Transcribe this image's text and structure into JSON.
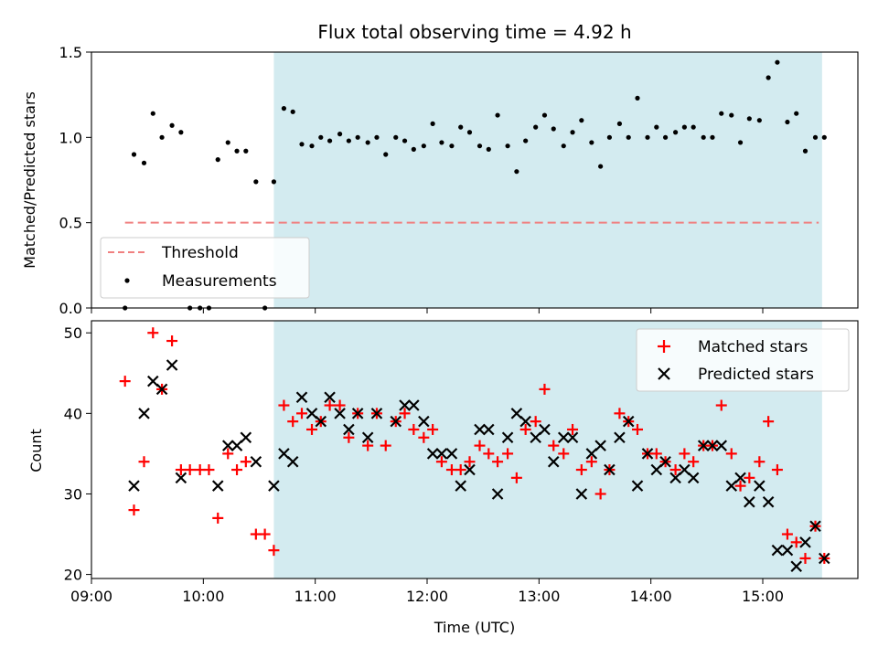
{
  "chart_data": [
    {
      "type": "scatter",
      "title": "Flux total observing time = 4.92 h",
      "xlabel": "",
      "ylabel": "Matched/Predicted stars",
      "xlim": [
        9.0,
        15.85
      ],
      "ylim": [
        0.0,
        1.5
      ],
      "yticks": [
        0.0,
        0.5,
        1.0,
        1.5
      ],
      "ytick_labels": [
        "0.0",
        "0.5",
        "1.0",
        "1.5"
      ],
      "shaded_span": [
        10.63,
        15.53
      ],
      "shade_color": "#d3ebf0",
      "threshold": {
        "name": "Threshold",
        "value": 0.5,
        "x_range": [
          9.3,
          15.5
        ],
        "color": "#f08080"
      },
      "measurements": {
        "name": "Measurements",
        "color": "#000000",
        "points": [
          [
            9.3,
            0.0
          ],
          [
            9.38,
            0.9
          ],
          [
            9.47,
            0.85
          ],
          [
            9.55,
            1.14
          ],
          [
            9.63,
            1.0
          ],
          [
            9.72,
            1.07
          ],
          [
            9.8,
            1.03
          ],
          [
            9.88,
            0.0
          ],
          [
            9.97,
            0.0
          ],
          [
            10.05,
            0.0
          ],
          [
            10.13,
            0.87
          ],
          [
            10.22,
            0.97
          ],
          [
            10.3,
            0.92
          ],
          [
            10.38,
            0.92
          ],
          [
            10.47,
            0.74
          ],
          [
            10.55,
            0.0
          ],
          [
            10.63,
            0.74
          ],
          [
            10.72,
            1.17
          ],
          [
            10.8,
            1.15
          ],
          [
            10.88,
            0.96
          ],
          [
            10.97,
            0.95
          ],
          [
            11.05,
            1.0
          ],
          [
            11.13,
            0.98
          ],
          [
            11.22,
            1.02
          ],
          [
            11.3,
            0.98
          ],
          [
            11.38,
            1.0
          ],
          [
            11.47,
            0.97
          ],
          [
            11.55,
            1.0
          ],
          [
            11.63,
            0.9
          ],
          [
            11.72,
            1.0
          ],
          [
            11.8,
            0.98
          ],
          [
            11.88,
            0.93
          ],
          [
            11.97,
            0.95
          ],
          [
            12.05,
            1.08
          ],
          [
            12.13,
            0.97
          ],
          [
            12.22,
            0.95
          ],
          [
            12.3,
            1.06
          ],
          [
            12.38,
            1.03
          ],
          [
            12.47,
            0.95
          ],
          [
            12.55,
            0.93
          ],
          [
            12.63,
            1.13
          ],
          [
            12.72,
            0.95
          ],
          [
            12.8,
            0.8
          ],
          [
            12.88,
            0.98
          ],
          [
            12.97,
            1.06
          ],
          [
            13.05,
            1.13
          ],
          [
            13.13,
            1.05
          ],
          [
            13.22,
            0.95
          ],
          [
            13.3,
            1.03
          ],
          [
            13.38,
            1.1
          ],
          [
            13.47,
            0.97
          ],
          [
            13.55,
            0.83
          ],
          [
            13.63,
            1.0
          ],
          [
            13.72,
            1.08
          ],
          [
            13.8,
            1.0
          ],
          [
            13.88,
            1.23
          ],
          [
            13.97,
            1.0
          ],
          [
            14.05,
            1.06
          ],
          [
            14.13,
            1.0
          ],
          [
            14.22,
            1.03
          ],
          [
            14.3,
            1.06
          ],
          [
            14.38,
            1.06
          ],
          [
            14.47,
            1.0
          ],
          [
            14.55,
            1.0
          ],
          [
            14.63,
            1.14
          ],
          [
            14.72,
            1.13
          ],
          [
            14.8,
            0.97
          ],
          [
            14.88,
            1.11
          ],
          [
            14.97,
            1.1
          ],
          [
            15.05,
            1.35
          ],
          [
            15.13,
            1.44
          ],
          [
            15.22,
            1.09
          ],
          [
            15.3,
            1.14
          ],
          [
            15.38,
            0.92
          ],
          [
            15.47,
            1.0
          ],
          [
            15.55,
            1.0
          ]
        ]
      },
      "legend": {
        "position": "lower-left",
        "entries": [
          "Threshold",
          "Measurements"
        ]
      }
    },
    {
      "type": "scatter",
      "title": "",
      "xlabel": "Time (UTC)",
      "ylabel": "Count",
      "xlim": [
        9.0,
        15.85
      ],
      "ylim": [
        19.5,
        51.5
      ],
      "yticks": [
        20,
        30,
        40,
        50
      ],
      "ytick_labels": [
        "20",
        "30",
        "40",
        "50"
      ],
      "xticks": [
        9,
        10,
        11,
        12,
        13,
        14,
        15
      ],
      "xtick_labels": [
        "09:00",
        "10:00",
        "11:00",
        "12:00",
        "13:00",
        "14:00",
        "15:00"
      ],
      "shaded_span": [
        10.63,
        15.53
      ],
      "series": [
        {
          "name": "Matched stars",
          "marker": "+",
          "color": "#ff0000",
          "points": [
            [
              9.3,
              44
            ],
            [
              9.38,
              28
            ],
            [
              9.47,
              34
            ],
            [
              9.55,
              50
            ],
            [
              9.63,
              43
            ],
            [
              9.72,
              49
            ],
            [
              9.8,
              33
            ],
            [
              9.88,
              33
            ],
            [
              9.97,
              33
            ],
            [
              10.05,
              33
            ],
            [
              10.13,
              27
            ],
            [
              10.22,
              35
            ],
            [
              10.3,
              33
            ],
            [
              10.38,
              34
            ],
            [
              10.47,
              25
            ],
            [
              10.55,
              25
            ],
            [
              10.63,
              23
            ],
            [
              10.72,
              41
            ],
            [
              10.8,
              39
            ],
            [
              10.88,
              40
            ],
            [
              10.97,
              38
            ],
            [
              11.05,
              39
            ],
            [
              11.13,
              41
            ],
            [
              11.22,
              41
            ],
            [
              11.3,
              37
            ],
            [
              11.38,
              40
            ],
            [
              11.47,
              36
            ],
            [
              11.55,
              40
            ],
            [
              11.63,
              36
            ],
            [
              11.72,
              39
            ],
            [
              11.8,
              40
            ],
            [
              11.88,
              38
            ],
            [
              11.97,
              37
            ],
            [
              12.05,
              38
            ],
            [
              12.13,
              34
            ],
            [
              12.22,
              33
            ],
            [
              12.3,
              33
            ],
            [
              12.38,
              34
            ],
            [
              12.47,
              36
            ],
            [
              12.55,
              35
            ],
            [
              12.63,
              34
            ],
            [
              12.72,
              35
            ],
            [
              12.8,
              32
            ],
            [
              12.88,
              38
            ],
            [
              12.97,
              39
            ],
            [
              13.05,
              43
            ],
            [
              13.13,
              36
            ],
            [
              13.22,
              35
            ],
            [
              13.3,
              38
            ],
            [
              13.38,
              33
            ],
            [
              13.47,
              34
            ],
            [
              13.55,
              30
            ],
            [
              13.63,
              33
            ],
            [
              13.72,
              40
            ],
            [
              13.8,
              39
            ],
            [
              13.88,
              38
            ],
            [
              13.97,
              35
            ],
            [
              14.05,
              35
            ],
            [
              14.13,
              34
            ],
            [
              14.22,
              33
            ],
            [
              14.3,
              35
            ],
            [
              14.38,
              34
            ],
            [
              14.47,
              36
            ],
            [
              14.55,
              36
            ],
            [
              14.63,
              41
            ],
            [
              14.72,
              35
            ],
            [
              14.8,
              31
            ],
            [
              14.88,
              32
            ],
            [
              14.97,
              34
            ],
            [
              15.05,
              39
            ],
            [
              15.13,
              33
            ],
            [
              15.22,
              25
            ],
            [
              15.3,
              24
            ],
            [
              15.38,
              22
            ],
            [
              15.47,
              26
            ],
            [
              15.55,
              22
            ]
          ]
        },
        {
          "name": "Predicted stars",
          "marker": "x",
          "color": "#000000",
          "points": [
            [
              9.38,
              31
            ],
            [
              9.47,
              40
            ],
            [
              9.55,
              44
            ],
            [
              9.63,
              43
            ],
            [
              9.72,
              46
            ],
            [
              9.8,
              32
            ],
            [
              10.13,
              31
            ],
            [
              10.22,
              36
            ],
            [
              10.3,
              36
            ],
            [
              10.38,
              37
            ],
            [
              10.47,
              34
            ],
            [
              10.63,
              31
            ],
            [
              10.72,
              35
            ],
            [
              10.8,
              34
            ],
            [
              10.88,
              42
            ],
            [
              10.97,
              40
            ],
            [
              11.05,
              39
            ],
            [
              11.13,
              42
            ],
            [
              11.22,
              40
            ],
            [
              11.3,
              38
            ],
            [
              11.38,
              40
            ],
            [
              11.47,
              37
            ],
            [
              11.55,
              40
            ],
            [
              11.72,
              39
            ],
            [
              11.8,
              41
            ],
            [
              11.88,
              41
            ],
            [
              11.97,
              39
            ],
            [
              12.05,
              35
            ],
            [
              12.13,
              35
            ],
            [
              12.22,
              35
            ],
            [
              12.3,
              31
            ],
            [
              12.38,
              33
            ],
            [
              12.47,
              38
            ],
            [
              12.55,
              38
            ],
            [
              12.63,
              30
            ],
            [
              12.72,
              37
            ],
            [
              12.8,
              40
            ],
            [
              12.88,
              39
            ],
            [
              12.97,
              37
            ],
            [
              13.05,
              38
            ],
            [
              13.13,
              34
            ],
            [
              13.22,
              37
            ],
            [
              13.3,
              37
            ],
            [
              13.38,
              30
            ],
            [
              13.47,
              35
            ],
            [
              13.55,
              36
            ],
            [
              13.63,
              33
            ],
            [
              13.72,
              37
            ],
            [
              13.8,
              39
            ],
            [
              13.88,
              31
            ],
            [
              13.97,
              35
            ],
            [
              14.05,
              33
            ],
            [
              14.13,
              34
            ],
            [
              14.22,
              32
            ],
            [
              14.3,
              33
            ],
            [
              14.38,
              32
            ],
            [
              14.47,
              36
            ],
            [
              14.55,
              36
            ],
            [
              14.63,
              36
            ],
            [
              14.72,
              31
            ],
            [
              14.8,
              32
            ],
            [
              14.88,
              29
            ],
            [
              14.97,
              31
            ],
            [
              15.05,
              29
            ],
            [
              15.13,
              23
            ],
            [
              15.22,
              23
            ],
            [
              15.3,
              21
            ],
            [
              15.38,
              24
            ],
            [
              15.47,
              26
            ],
            [
              15.55,
              22
            ]
          ]
        }
      ],
      "legend": {
        "position": "upper-right",
        "entries": [
          "Matched stars",
          "Predicted stars"
        ]
      }
    }
  ]
}
